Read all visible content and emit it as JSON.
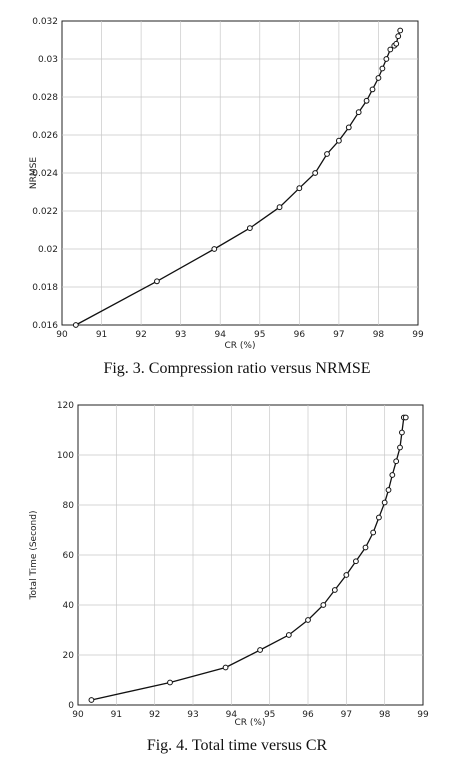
{
  "chart_data": [
    {
      "type": "line",
      "caption": "Fig. 3. Compression ratio versus NRMSE",
      "xlabel": "CR (%)",
      "ylabel": "NRMSE",
      "xlim": [
        90,
        99
      ],
      "ylim": [
        0.016,
        0.032
      ],
      "xticks": [
        "90",
        "91",
        "92",
        "93",
        "94",
        "95",
        "96",
        "97",
        "98",
        "99"
      ],
      "yticks": [
        "0.016",
        "0.018",
        "0.02",
        "0.022",
        "0.024",
        "0.026",
        "0.028",
        "0.03",
        "0.032"
      ],
      "grid": true,
      "series": [
        {
          "x": [
            90.35,
            92.4,
            93.85,
            94.75,
            95.5,
            96.0,
            96.4,
            96.7,
            97.0,
            97.25,
            97.5,
            97.7,
            97.85,
            98.0,
            98.1,
            98.2,
            98.3,
            98.4,
            98.45,
            98.5,
            98.55
          ],
          "y": [
            0.016,
            0.0183,
            0.02,
            0.0211,
            0.0222,
            0.0232,
            0.024,
            0.025,
            0.0257,
            0.0264,
            0.0272,
            0.0278,
            0.0284,
            0.029,
            0.0295,
            0.03,
            0.0305,
            0.0307,
            0.0308,
            0.0312,
            0.0315
          ],
          "color": "#111111"
        }
      ]
    },
    {
      "type": "line",
      "caption": "Fig. 4. Total time versus CR",
      "xlabel": "CR (%)",
      "ylabel": "Total Time (Second)",
      "xlim": [
        90,
        99
      ],
      "ylim": [
        0,
        120
      ],
      "xticks": [
        "90",
        "91",
        "92",
        "93",
        "94",
        "95",
        "96",
        "97",
        "98",
        "99"
      ],
      "yticks": [
        "0",
        "20",
        "40",
        "60",
        "80",
        "100",
        "120"
      ],
      "grid": true,
      "series": [
        {
          "x": [
            90.35,
            92.4,
            93.85,
            94.75,
            95.5,
            96.0,
            96.4,
            96.7,
            97.0,
            97.25,
            97.5,
            97.7,
            97.85,
            98.0,
            98.1,
            98.2,
            98.3,
            98.4,
            98.45,
            98.5,
            98.55
          ],
          "y": [
            2,
            9,
            15,
            22,
            28,
            34,
            40,
            46,
            52,
            57.5,
            63,
            69,
            75,
            81,
            86,
            92,
            97.5,
            103,
            109,
            115,
            115
          ],
          "color": "#111111"
        }
      ]
    }
  ]
}
